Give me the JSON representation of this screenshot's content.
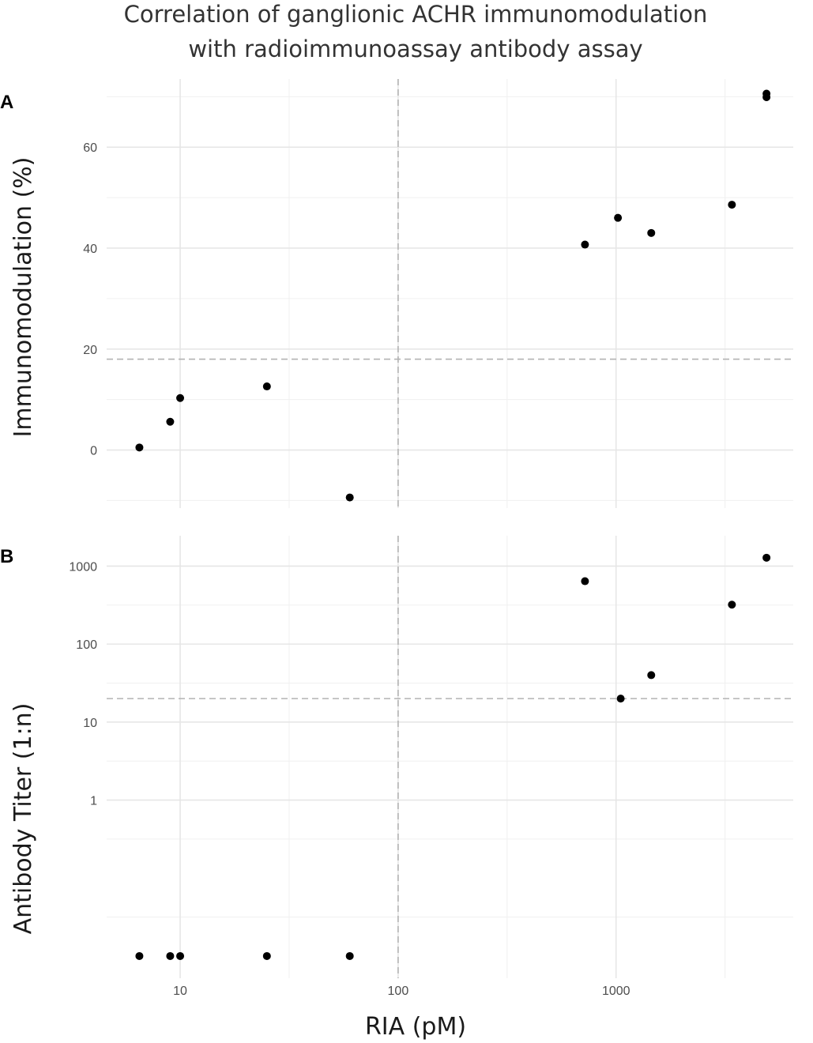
{
  "title_lines": [
    "Correlation of ganglionic ACHR immunomodulation",
    "with radioimmunoassay antibody assay"
  ],
  "xlabel": "RIA (pM)",
  "colors": {
    "points": "#000000",
    "grid": "#e6e6e6",
    "reference": "#b3b3b3"
  },
  "chart_data": [
    {
      "panel": "A",
      "type": "scatter",
      "x_scale": "log",
      "xlim": [
        4.6,
        6500
      ],
      "x_ticks": [
        10,
        100,
        1000
      ],
      "x_tick_labels": [
        "10",
        "100",
        "1000"
      ],
      "ylabel": "Immunomodulation (%)",
      "y_scale": "linear",
      "ylim": [
        -11.5,
        73.5
      ],
      "y_ticks": [
        0,
        20,
        40,
        60
      ],
      "y_tick_labels": [
        "0",
        "20",
        "40",
        "60"
      ],
      "ref_x": 100,
      "ref_y": 18,
      "grid": true,
      "points": [
        {
          "x": 6.5,
          "y": 0.5
        },
        {
          "x": 9,
          "y": 5.6
        },
        {
          "x": 10,
          "y": 10.3
        },
        {
          "x": 25,
          "y": 12.6
        },
        {
          "x": 60,
          "y": -9.4
        },
        {
          "x": 720,
          "y": 40.7
        },
        {
          "x": 1020,
          "y": 46.0
        },
        {
          "x": 1450,
          "y": 43.0
        },
        {
          "x": 3400,
          "y": 48.6
        },
        {
          "x": 4900,
          "y": 70.6
        },
        {
          "x": 4900,
          "y": 69.9
        }
      ]
    },
    {
      "panel": "B",
      "type": "scatter",
      "x_scale": "log",
      "xlim": [
        4.6,
        6500
      ],
      "x_ticks": [
        10,
        100,
        1000
      ],
      "x_tick_labels": [
        "10",
        "100",
        "1000"
      ],
      "ylabel": "Antibody Titer (1:n)",
      "y_scale": "log",
      "ylim": [
        0.0052,
        2450
      ],
      "y_ticks": [
        1,
        10,
        100,
        1000
      ],
      "y_tick_labels": [
        "1",
        "10",
        "100",
        "1000"
      ],
      "ref_x": 100,
      "ref_y": 20,
      "grid": true,
      "points": [
        {
          "x": 6.5,
          "y": 0.01
        },
        {
          "x": 9,
          "y": 0.01
        },
        {
          "x": 10,
          "y": 0.01
        },
        {
          "x": 25,
          "y": 0.01
        },
        {
          "x": 60,
          "y": 0.01
        },
        {
          "x": 720,
          "y": 640
        },
        {
          "x": 1050,
          "y": 20
        },
        {
          "x": 1450,
          "y": 40
        },
        {
          "x": 3400,
          "y": 320
        },
        {
          "x": 4900,
          "y": 1280
        }
      ]
    }
  ]
}
